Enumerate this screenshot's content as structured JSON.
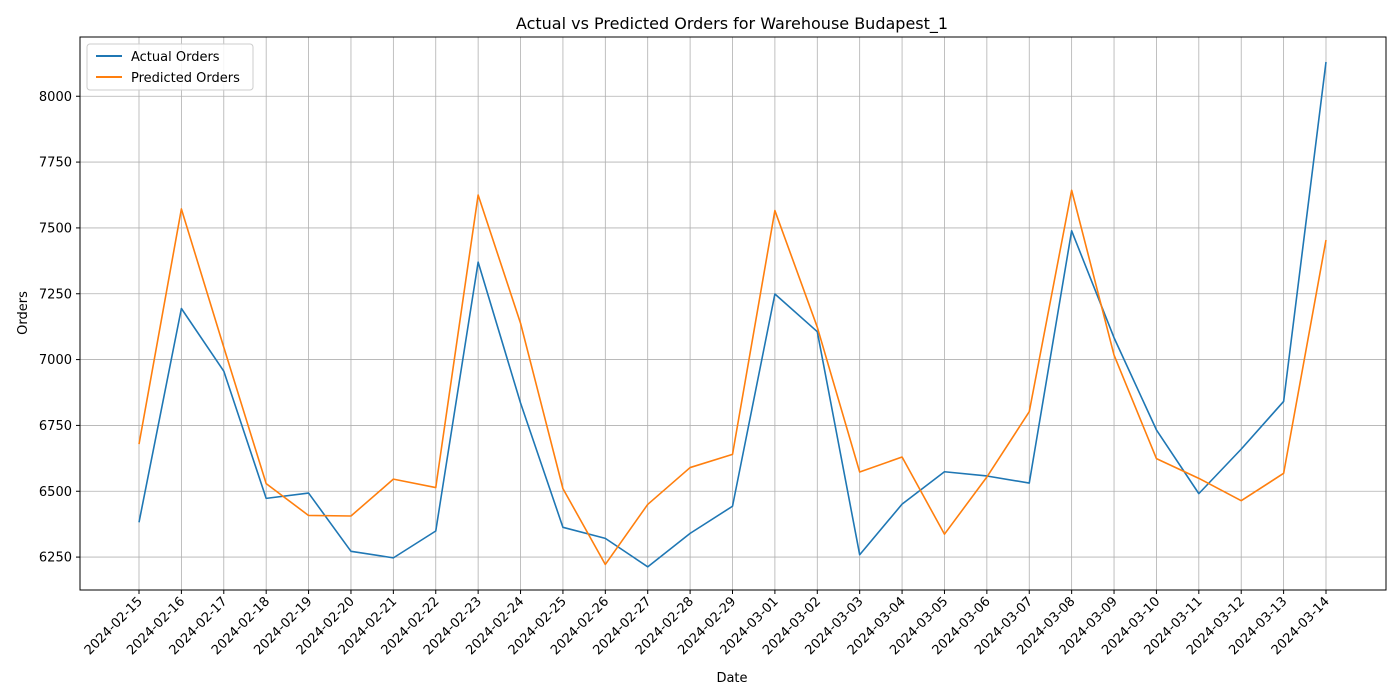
{
  "chart_data": {
    "type": "line",
    "title": "Actual vs Predicted Orders for Warehouse Budapest_1",
    "xlabel": "Date",
    "ylabel": "Orders",
    "categories": [
      "2024-02-15",
      "2024-02-16",
      "2024-02-17",
      "2024-02-18",
      "2024-02-19",
      "2024-02-20",
      "2024-02-21",
      "2024-02-22",
      "2024-02-23",
      "2024-02-24",
      "2024-02-25",
      "2024-02-26",
      "2024-02-27",
      "2024-02-28",
      "2024-02-29",
      "2024-03-01",
      "2024-03-02",
      "2024-03-03",
      "2024-03-04",
      "2024-03-05",
      "2024-03-06",
      "2024-03-07",
      "2024-03-08",
      "2024-03-09",
      "2024-03-10",
      "2024-03-11",
      "2024-03-12",
      "2024-03-13",
      "2024-03-14"
    ],
    "yticks": [
      6250,
      6500,
      6750,
      7000,
      7250,
      7500,
      7750,
      8000
    ],
    "ylim": [
      6125,
      8225
    ],
    "grid": true,
    "legend_position": "top-left",
    "series": [
      {
        "name": "Actual Orders",
        "color": "#1f77b4",
        "values": [
          6382,
          7194,
          6956,
          6473,
          6493,
          6272,
          6247,
          6349,
          7370,
          6835,
          6363,
          6321,
          6213,
          6340,
          6443,
          7249,
          7106,
          6259,
          6451,
          6574,
          6558,
          6531,
          7489,
          7083,
          6733,
          6491,
          6660,
          6841,
          8130
        ]
      },
      {
        "name": "Predicted Orders",
        "color": "#ff7f0e",
        "values": [
          6679,
          7572,
          7047,
          6529,
          6408,
          6406,
          6546,
          6514,
          7625,
          7138,
          6510,
          6222,
          6450,
          6590,
          6640,
          7566,
          7123,
          6573,
          6630,
          6337,
          6554,
          6802,
          7643,
          7017,
          6624,
          6549,
          6464,
          6568,
          7454
        ]
      }
    ]
  }
}
